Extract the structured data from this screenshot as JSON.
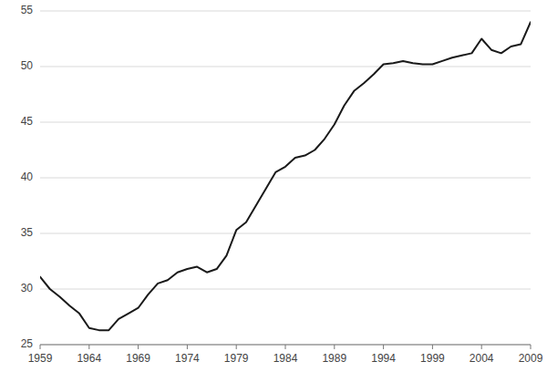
{
  "chart_data": {
    "type": "line",
    "x": [
      1959,
      1960,
      1961,
      1962,
      1963,
      1964,
      1965,
      1966,
      1967,
      1968,
      1969,
      1970,
      1971,
      1972,
      1973,
      1974,
      1975,
      1976,
      1977,
      1978,
      1979,
      1980,
      1981,
      1982,
      1983,
      1984,
      1985,
      1986,
      1987,
      1988,
      1989,
      1990,
      1991,
      1992,
      1993,
      1994,
      1995,
      1996,
      1997,
      1998,
      1999,
      2000,
      2001,
      2002,
      2003,
      2004,
      2005,
      2006,
      2007,
      2008,
      2009
    ],
    "values": [
      31.1,
      30.0,
      29.3,
      28.5,
      27.8,
      26.5,
      26.3,
      26.3,
      27.3,
      27.8,
      28.3,
      29.5,
      30.5,
      30.8,
      31.5,
      31.8,
      32.0,
      31.5,
      31.8,
      33.0,
      35.3,
      36.0,
      37.5,
      39.0,
      40.5,
      41.0,
      41.8,
      42.0,
      42.5,
      43.5,
      44.8,
      46.5,
      47.8,
      48.5,
      49.3,
      50.2,
      50.3,
      50.5,
      50.3,
      50.2,
      50.2,
      50.5,
      50.8,
      51.0,
      51.2,
      52.5,
      51.5,
      51.2,
      51.8,
      52.0,
      54.0
    ],
    "color": "#1a1a1a",
    "xlim": [
      1959,
      2009
    ],
    "ylim": [
      25,
      55
    ],
    "xticks": [
      1959,
      1964,
      1969,
      1974,
      1979,
      1984,
      1989,
      1994,
      1999,
      2004,
      2009
    ],
    "yticks": [
      25,
      30,
      35,
      40,
      45,
      50,
      55
    ],
    "grid": true
  }
}
